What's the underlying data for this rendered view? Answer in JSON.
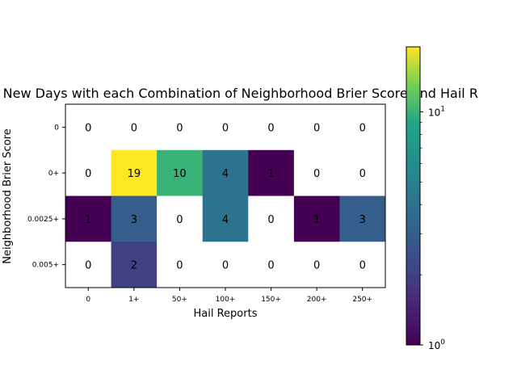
{
  "chart_data": {
    "type": "heatmap",
    "title": "rate New Days with each Combination of Neighborhood Brier Score and Hail R",
    "xlabel": "Hail Reports",
    "ylabel": "Neighborhood Brier Score",
    "x_categories": [
      "0",
      "1+",
      "50+",
      "100+",
      "150+",
      "200+",
      "250+"
    ],
    "y_categories": [
      "0",
      "0+",
      "0.0025+",
      "0.005+"
    ],
    "values": [
      [
        0,
        0,
        0,
        0,
        0,
        0,
        0
      ],
      [
        0,
        19,
        10,
        4,
        1,
        0,
        0
      ],
      [
        1,
        3,
        0,
        4,
        0,
        1,
        3
      ],
      [
        0,
        2,
        0,
        0,
        0,
        0,
        0
      ]
    ],
    "color_scale": "log",
    "colormap": "viridis",
    "vmin": 1,
    "vmax": 19,
    "zero_color": "#ffffff",
    "colorbar": {
      "ticks": [
        {
          "value": 1,
          "base": "10",
          "exp": "0"
        },
        {
          "value": 10,
          "base": "10",
          "exp": "1"
        }
      ],
      "minor_ticks": [
        2,
        3,
        4,
        5,
        6,
        7,
        8,
        9
      ]
    }
  }
}
